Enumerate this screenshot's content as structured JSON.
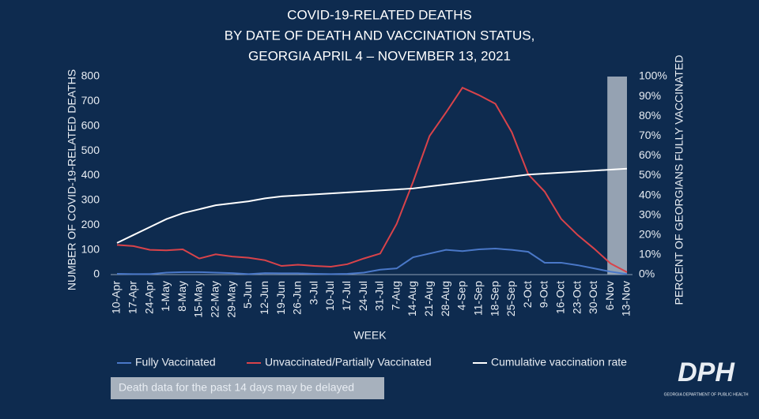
{
  "chart_data": {
    "type": "line",
    "title": [
      "COVID-19-RELATED DEATHS",
      "BY DATE OF DEATH AND VACCINATION STATUS,",
      "GEORGIA APRIL 4 – NOVEMBER 13, 2021"
    ],
    "x_label": "WEEK",
    "y_label": "NUMBER OF COVID-19-RELATED DEATHS",
    "y2_label": "PERCENT OF GEORGIANS FULLY VACCINATED",
    "categories": [
      "10-Apr",
      "17-Apr",
      "24-Apr",
      "1-May",
      "8-May",
      "15-May",
      "22-May",
      "29-May",
      "5-Jun",
      "12-Jun",
      "19-Jun",
      "26-Jun",
      "3-Jul",
      "10-Jul",
      "17-Jul",
      "24-Jul",
      "31-Jul",
      "7-Aug",
      "14-Aug",
      "21-Aug",
      "28-Aug",
      "4-Sep",
      "11-Sep",
      "18-Sep",
      "25-Sep",
      "2-Oct",
      "9-Oct",
      "16-Oct",
      "23-Oct",
      "30-Oct",
      "6-Nov",
      "13-Nov"
    ],
    "series": [
      {
        "name": "Fully Vaccinated",
        "color": "#4a78c8",
        "values": [
          3,
          2,
          2,
          8,
          10,
          10,
          8,
          6,
          2,
          6,
          5,
          5,
          3,
          2,
          3,
          8,
          20,
          25,
          70,
          85,
          100,
          95,
          102,
          105,
          100,
          92,
          48,
          48,
          38,
          25,
          12,
          2
        ]
      },
      {
        "name": "Unvaccinated/Partially Vaccinated",
        "color": "#d9434a",
        "values": [
          120,
          115,
          100,
          98,
          102,
          65,
          82,
          73,
          68,
          58,
          35,
          40,
          35,
          32,
          42,
          65,
          85,
          205,
          375,
          560,
          655,
          755,
          725,
          690,
          575,
          405,
          335,
          225,
          160,
          105,
          45,
          10
        ]
      },
      {
        "name": "Cumulative vaccination rate",
        "color": "#ffffff",
        "axis": "y2",
        "values": [
          16,
          20,
          24,
          28,
          31,
          33,
          35,
          36,
          37,
          38.5,
          39.5,
          40,
          40.5,
          41,
          41.5,
          42,
          42.5,
          43,
          43.5,
          44.5,
          45.5,
          46.5,
          47.5,
          48.5,
          49.5,
          50.5,
          51,
          51.5,
          52,
          52.5,
          53,
          53.5
        ]
      }
    ],
    "ylim": [
      0,
      800
    ],
    "yticks": [
      0,
      100,
      200,
      300,
      400,
      500,
      600,
      700,
      800
    ],
    "y2lim": [
      0,
      100
    ],
    "y2ticks": [
      {
        "value": 0,
        "label": "0%"
      },
      {
        "value": 10,
        "label": "10%"
      },
      {
        "value": 20,
        "label": "20%"
      },
      {
        "value": 30,
        "label": "30%"
      },
      {
        "value": 40,
        "label": "40%"
      },
      {
        "value": 50,
        "label": "50%"
      },
      {
        "value": 60,
        "label": "60%"
      },
      {
        "value": 70,
        "label": "70%"
      },
      {
        "value": 80,
        "label": "80%"
      },
      {
        "value": 90,
        "label": "90%"
      },
      {
        "value": 100,
        "label": "100%"
      }
    ],
    "annotation": "Death data for the past 14 days may be delayed",
    "logo": {
      "text": "DPH",
      "subtitle": "GEORGIA DEPARTMENT OF PUBLIC HEALTH"
    }
  }
}
